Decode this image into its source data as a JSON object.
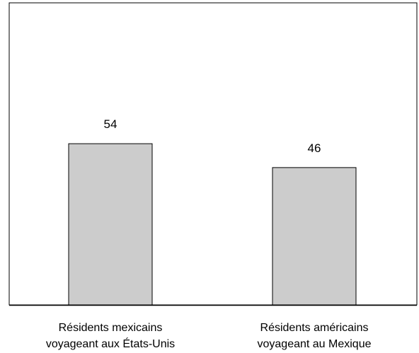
{
  "chart_data": {
    "type": "bar",
    "title": "",
    "xlabel": "",
    "ylabel": "",
    "categories": [
      [
        "Résidents mexicains",
        "voyageant aux États-Unis"
      ],
      [
        "Résidents américains",
        "voyageant au Mexique"
      ]
    ],
    "values": [
      54,
      46
    ],
    "ylim": [
      0,
      100
    ],
    "grid": false,
    "legend": "none",
    "colors": {
      "bar_fill": "#cccccc",
      "bar_stroke": "#000000",
      "frame": "#000000",
      "background": "#ffffff"
    }
  }
}
